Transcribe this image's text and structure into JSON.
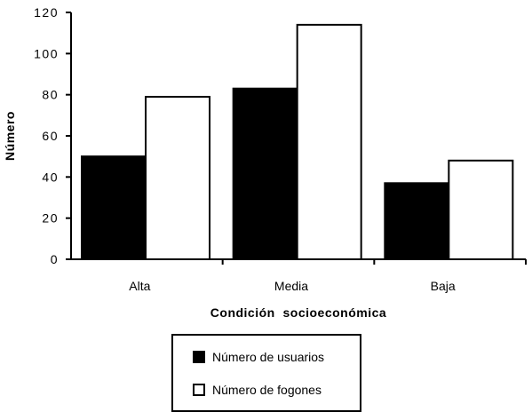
{
  "chart_data": {
    "type": "bar",
    "categories": [
      "Alta",
      "Media",
      "Baja"
    ],
    "series": [
      {
        "name": "Número de usuarios",
        "values": [
          50,
          83,
          37
        ],
        "color": "#000000"
      },
      {
        "name": "Número de fogones",
        "values": [
          79,
          114,
          48
        ],
        "color": "#ffffff"
      }
    ],
    "title": "",
    "xlabel": "Condición  socioeconómica",
    "ylabel": "Número",
    "ylim": [
      0,
      120
    ],
    "yticks": [
      "0",
      "20",
      "40",
      "60",
      "80",
      "100",
      "120"
    ],
    "grid": false,
    "legend_position": "bottom"
  }
}
